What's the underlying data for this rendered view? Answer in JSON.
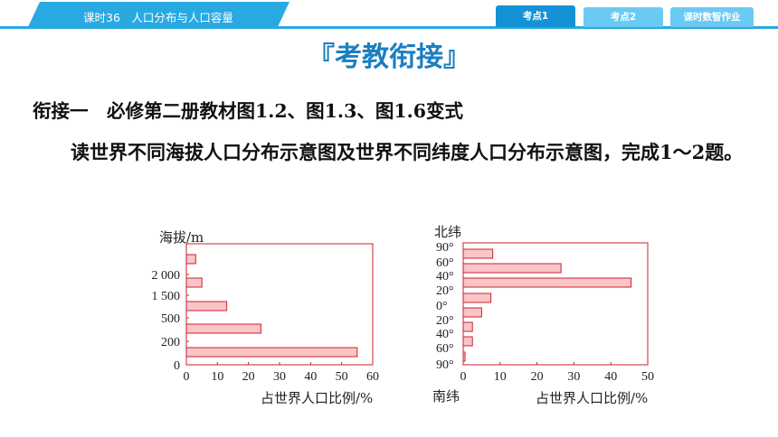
{
  "topbar": {
    "lesson_title": "课时36　人口分布与人口容量",
    "tabs": [
      {
        "label": "考点1",
        "active": true
      },
      {
        "label": "考点2",
        "active": false
      },
      {
        "label": "课时数智作业",
        "active": false
      }
    ]
  },
  "section_header": "『考教衔接』",
  "heading": "衔接一　必修第二册教材图1.2、图1.3、图1.6变式",
  "paragraph": "读世界不同海拔人口分布示意图及世界不同纬度人口分布示意图，完成1～2题。",
  "colors": {
    "accent": "#29a9e1",
    "bar_fill": "#f9c5c7",
    "bar_stroke": "#c9222c"
  },
  "chart_data": [
    {
      "type": "bar",
      "orientation": "horizontal",
      "ylabel": "海拔/m",
      "xlabel": "占世界人口比例/%",
      "y_ticks": [
        "0",
        "200",
        "500",
        "1 500",
        "2 000"
      ],
      "x_ticks": [
        "0",
        "10",
        "20",
        "30",
        "40",
        "50",
        "60"
      ],
      "xlim": [
        0,
        60
      ],
      "categories": [
        "0–200",
        "200–500",
        "500–1 500",
        "1 500–2 000",
        ">2 000"
      ],
      "values": [
        55,
        24,
        13,
        5,
        3
      ]
    },
    {
      "type": "bar",
      "orientation": "horizontal",
      "ylabel_top": "北纬",
      "ylabel_bottom": "南纬",
      "xlabel": "占世界人口比例/%",
      "y_ticks": [
        "90°",
        "60°",
        "40°",
        "20°",
        "0°",
        "20°",
        "40°",
        "60°",
        "90°"
      ],
      "x_ticks": [
        "0",
        "10",
        "20",
        "30",
        "40",
        "50"
      ],
      "xlim": [
        0,
        50
      ],
      "categories": [
        "60°N–90°N",
        "40°N–60°N",
        "20°N–40°N",
        "0°–20°N",
        "0°–20°S",
        "20°S–40°S",
        "40°S–60°S",
        "60°S–90°S"
      ],
      "values": [
        8,
        26.5,
        45.5,
        7.5,
        5,
        2.5,
        2.5,
        0.5
      ]
    }
  ]
}
